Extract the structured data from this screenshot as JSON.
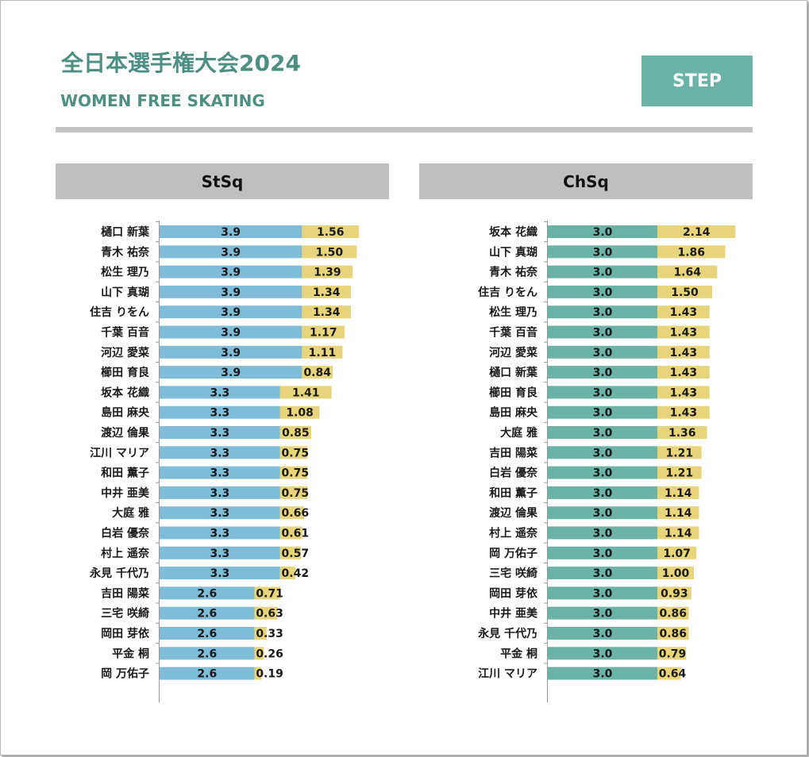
{
  "header": {
    "title": "全日本選手権大会2024",
    "subtitle": "WOMEN FREE SKATING",
    "badge": "STEP"
  },
  "colors": {
    "accent": "#4e8f84",
    "badge": "#6ab3a6",
    "stsq_base": "#7fbcd8",
    "chsq_base": "#6ab3a6",
    "goe": "#e8d47a",
    "header_bg": "#bfbfbf"
  },
  "chart_data": [
    {
      "type": "bar",
      "title": "StSq",
      "orientation": "horizontal",
      "stacked": true,
      "series": [
        {
          "name": "base",
          "values": [
            3.9,
            3.9,
            3.9,
            3.9,
            3.9,
            3.9,
            3.9,
            3.9,
            3.3,
            3.3,
            3.3,
            3.3,
            3.3,
            3.3,
            3.3,
            3.3,
            3.3,
            3.3,
            2.6,
            2.6,
            2.6,
            2.6,
            2.6
          ]
        },
        {
          "name": "goe",
          "values": [
            1.56,
            1.5,
            1.39,
            1.34,
            1.34,
            1.17,
            1.11,
            0.84,
            1.41,
            1.08,
            0.85,
            0.75,
            0.75,
            0.75,
            0.66,
            0.61,
            0.57,
            0.42,
            0.71,
            0.63,
            0.33,
            0.26,
            0.19
          ]
        }
      ],
      "base_labels": [
        "3.9",
        "3.9",
        "3.9",
        "3.9",
        "3.9",
        "3.9",
        "3.9",
        "3.9",
        "3.3",
        "3.3",
        "3.3",
        "3.3",
        "3.3",
        "3.3",
        "3.3",
        "3.3",
        "3.3",
        "3.3",
        "2.6",
        "2.6",
        "2.6",
        "2.6",
        "2.6"
      ],
      "goe_labels": [
        "1.56",
        "1.50",
        "1.39",
        "1.34",
        "1.34",
        "1.17",
        "1.11",
        "0.84",
        "1.41",
        "1.08",
        "0.85",
        "0.75",
        "0.75",
        "0.75",
        "0.66",
        "0.61",
        "0.57",
        "0.42",
        "0.71",
        "0.63",
        "0.33",
        "0.26",
        "0.19"
      ],
      "categories": [
        "樋口 新葉",
        "青木 祐奈",
        "松生 理乃",
        "山下 真瑚",
        "住吉 りをん",
        "千葉 百音",
        "河辺 愛菜",
        "櫛田 育良",
        "坂本 花織",
        "島田 麻央",
        "渡辺 倫果",
        "江川 マリア",
        "和田 薫子",
        "中井 亜美",
        "大庭 雅",
        "白岩 優奈",
        "村上 遥奈",
        "永見 千代乃",
        "吉田 陽菜",
        "三宅 咲綺",
        "岡田 芽依",
        "平金 桐",
        "岡 万佑子"
      ],
      "xlim": [
        0,
        6
      ]
    },
    {
      "type": "bar",
      "title": "ChSq",
      "orientation": "horizontal",
      "stacked": true,
      "series": [
        {
          "name": "base",
          "values": [
            3.0,
            3.0,
            3.0,
            3.0,
            3.0,
            3.0,
            3.0,
            3.0,
            3.0,
            3.0,
            3.0,
            3.0,
            3.0,
            3.0,
            3.0,
            3.0,
            3.0,
            3.0,
            3.0,
            3.0,
            3.0,
            3.0,
            3.0
          ]
        },
        {
          "name": "goe",
          "values": [
            2.14,
            1.86,
            1.64,
            1.5,
            1.43,
            1.43,
            1.43,
            1.43,
            1.43,
            1.43,
            1.36,
            1.21,
            1.21,
            1.14,
            1.14,
            1.14,
            1.07,
            1.0,
            0.93,
            0.86,
            0.86,
            0.79,
            0.64
          ]
        }
      ],
      "base_labels": [
        "3.0",
        "3.0",
        "3.0",
        "3.0",
        "3.0",
        "3.0",
        "3.0",
        "3.0",
        "3.0",
        "3.0",
        "3.0",
        "3.0",
        "3.0",
        "3.0",
        "3.0",
        "3.0",
        "3.0",
        "3.0",
        "3.0",
        "3.0",
        "3.0",
        "3.0",
        "3.0"
      ],
      "goe_labels": [
        "2.14",
        "1.86",
        "1.64",
        "1.50",
        "1.43",
        "1.43",
        "1.43",
        "1.43",
        "1.43",
        "1.43",
        "1.36",
        "1.21",
        "1.21",
        "1.14",
        "1.14",
        "1.14",
        "1.07",
        "1.00",
        "0.93",
        "0.86",
        "0.86",
        "0.79",
        "0.64"
      ],
      "categories": [
        "坂本 花織",
        "山下 真瑚",
        "青木 祐奈",
        "住吉 りをん",
        "松生 理乃",
        "千葉 百音",
        "河辺 愛菜",
        "樋口 新葉",
        "櫛田 育良",
        "島田 麻央",
        "大庭 雅",
        "吉田 陽菜",
        "白岩 優奈",
        "和田 薫子",
        "渡辺 倫果",
        "村上 遥奈",
        "岡 万佑子",
        "三宅 咲綺",
        "岡田 芽依",
        "中井 亜美",
        "永見 千代乃",
        "平金 桐",
        "江川 マリア"
      ],
      "xlim": [
        0,
        6
      ]
    }
  ]
}
